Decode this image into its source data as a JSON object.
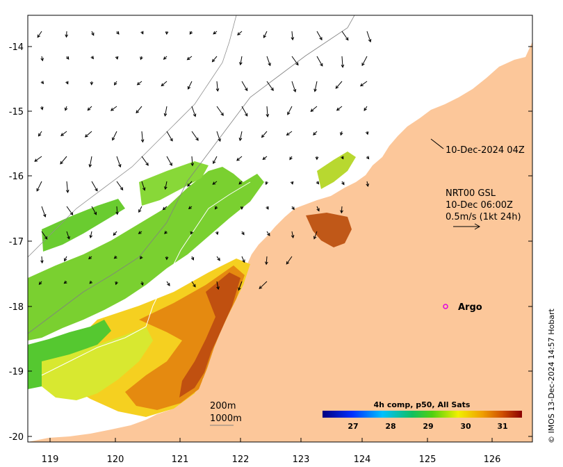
{
  "map": {
    "lat_labels": [
      "-14",
      "-15",
      "-16",
      "-17",
      "-18",
      "-19",
      "-20"
    ],
    "lon_labels": [
      "119",
      "120",
      "121",
      "122",
      "123",
      "124",
      "125",
      "126"
    ],
    "lat_range": [
      -20.1,
      -13.5
    ],
    "lon_range": [
      118.6,
      126.7
    ]
  },
  "annotations": {
    "timestamp": "10-Dec-2024 04Z",
    "current_title": "NRT00 GSL",
    "current_time": "10-Dec 06:00Z",
    "current_scale": "0.5m/s (1kt 24h)",
    "argo_label": "Argo",
    "depth_200": "200m",
    "depth_1000": "1000m"
  },
  "colorbar": {
    "title": "4h comp, p50, All Sats",
    "ticks": [
      "27",
      "28",
      "29",
      "30",
      "31"
    ],
    "range": [
      26.2,
      31.6
    ]
  },
  "credit": "© IMOS 13-Dec-2024 14:57 Hobart",
  "colors": {
    "land": "#fcc79a",
    "argo": "#e000e0",
    "frame": "#000000"
  }
}
